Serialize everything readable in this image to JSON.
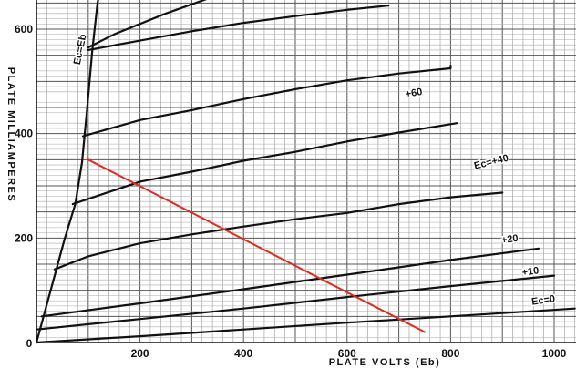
{
  "chart_data": {
    "type": "line",
    "title": "",
    "xlabel": "PLATE VOLTS (Eb)",
    "ylabel": "PLATE MILLIAMPERES",
    "xlim": [
      0,
      1040
    ],
    "ylim": [
      0,
      700
    ],
    "xticks": [
      {
        "value": 200,
        "label": "200"
      },
      {
        "value": 400,
        "label": "400"
      },
      {
        "value": 600,
        "label": "600"
      },
      {
        "value": 800,
        "label": "800"
      },
      {
        "value": 1000,
        "label": "1000"
      }
    ],
    "yticks": [
      {
        "value": 200,
        "label": "200"
      },
      {
        "value": 400,
        "label": "400"
      },
      {
        "value": 600,
        "label": "600"
      }
    ],
    "grid": true,
    "series": [
      {
        "name": "Ec=Eb",
        "label": "Ec=Eb",
        "color": "#111111",
        "points": [
          [
            0,
            0
          ],
          [
            55,
            200
          ],
          [
            75,
            265
          ],
          [
            88,
            345
          ],
          [
            98,
            450
          ],
          [
            108,
            560
          ],
          [
            118,
            650
          ],
          [
            128,
            700
          ]
        ]
      },
      {
        "name": "+80",
        "label": "+80",
        "color": "#111111",
        "points": [
          [
            100,
            565
          ],
          [
            150,
            590
          ],
          [
            250,
            630
          ],
          [
            350,
            665
          ],
          [
            450,
            690
          ],
          [
            470,
            700
          ]
        ]
      },
      {
        "name": "+80",
        "label": "+80",
        "color": "#111111",
        "points": [
          [
            100,
            560
          ],
          [
            200,
            578
          ],
          [
            300,
            596
          ],
          [
            400,
            612
          ],
          [
            500,
            625
          ],
          [
            600,
            637
          ],
          [
            680,
            645
          ]
        ]
      },
      {
        "name": "+60",
        "label": "+60",
        "color": "#111111",
        "points": [
          [
            90,
            395
          ],
          [
            200,
            426
          ],
          [
            300,
            445
          ],
          [
            400,
            466
          ],
          [
            500,
            485
          ],
          [
            600,
            502
          ],
          [
            700,
            515
          ],
          [
            800,
            525
          ],
          [
            800,
            530
          ]
        ]
      },
      {
        "name": "+60",
        "label": "+60",
        "color": "#111111",
        "points": [
          [
            70,
            265
          ],
          [
            200,
            308
          ],
          [
            300,
            327
          ],
          [
            400,
            348
          ],
          [
            500,
            365
          ],
          [
            600,
            385
          ],
          [
            700,
            402
          ],
          [
            800,
            418
          ],
          [
            812,
            420
          ]
        ]
      },
      {
        "name": "Ec=+40",
        "label": "Ec=+40",
        "color": "#111111",
        "points": [
          [
            35,
            140
          ],
          [
            100,
            165
          ],
          [
            200,
            190
          ],
          [
            300,
            207
          ],
          [
            400,
            222
          ],
          [
            500,
            236
          ],
          [
            600,
            248
          ],
          [
            700,
            265
          ],
          [
            800,
            278
          ],
          [
            900,
            287
          ]
        ]
      },
      {
        "name": "+20",
        "label": "+20",
        "color": "#111111",
        "points": [
          [
            10,
            50
          ],
          [
            200,
            75
          ],
          [
            400,
            102
          ],
          [
            600,
            130
          ],
          [
            800,
            158
          ],
          [
            970,
            180
          ]
        ]
      },
      {
        "name": "+10",
        "label": "+10",
        "color": "#111111",
        "points": [
          [
            0,
            25
          ],
          [
            200,
            45
          ],
          [
            400,
            65
          ],
          [
            600,
            87
          ],
          [
            800,
            108
          ],
          [
            1000,
            128
          ]
        ]
      },
      {
        "name": "Ec=0",
        "label": "Ec=0",
        "color": "#111111",
        "points": [
          [
            0,
            0
          ],
          [
            200,
            12
          ],
          [
            400,
            25
          ],
          [
            600,
            38
          ],
          [
            800,
            50
          ],
          [
            1040,
            65
          ]
        ]
      },
      {
        "name": "load line",
        "label": "",
        "color": "#e02a21",
        "points": [
          [
            100,
            350
          ],
          [
            750,
            20
          ]
        ]
      }
    ],
    "curve_labels": [
      {
        "text": "+80",
        "x": 668,
        "y": 682,
        "angle": -12
      },
      {
        "text": "+60",
        "x": 730,
        "y": 472,
        "angle": -10
      },
      {
        "text": "Ec=+40",
        "x": 880,
        "y": 340,
        "angle": -14
      },
      {
        "text": "+20",
        "x": 915,
        "y": 192,
        "angle": -8
      },
      {
        "text": "+10",
        "x": 955,
        "y": 130,
        "angle": -8
      },
      {
        "text": "Ec=0",
        "x": 980,
        "y": 75,
        "angle": -8
      },
      {
        "text": "Ec=Eb",
        "x": 90,
        "y": 560,
        "angle": -78
      }
    ]
  }
}
